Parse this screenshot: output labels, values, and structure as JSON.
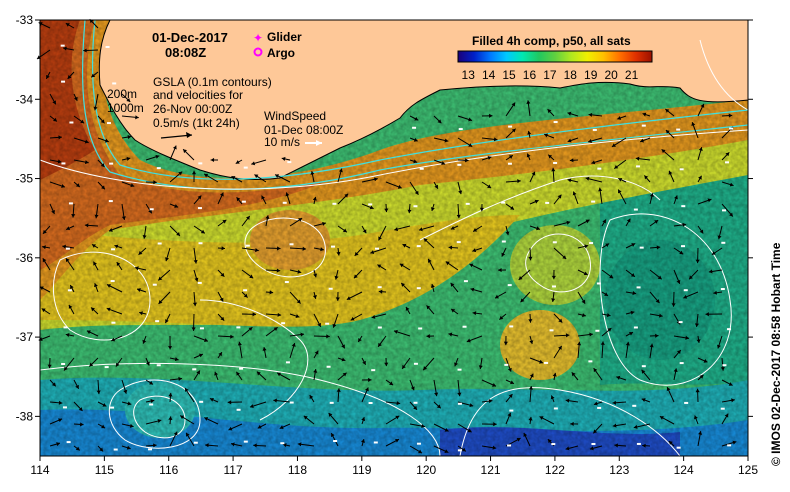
{
  "header": {
    "date": "01-Dec-2017",
    "time": "08:08Z"
  },
  "legend_markers": {
    "glider": "Glider",
    "argo": "Argo",
    "glider_color": "#ff00ff",
    "argo_color": "#ff00ff"
  },
  "depth_labels": [
    "200m",
    "1000m"
  ],
  "gsla_note": [
    "GSLA (0.1m contours)",
    "and velocities for",
    "26-Nov 00:00Z",
    "0.5m/s (1kt 24h)"
  ],
  "wind_note": [
    "WindSpeed",
    "01-Dec 08:00Z",
    "10 m/s"
  ],
  "colorbar": {
    "title": "Filled 4h comp, p50, all sats",
    "ticks": [
      "13",
      "14",
      "15",
      "16",
      "17",
      "18",
      "19",
      "20",
      "21"
    ],
    "range": [
      12.5,
      22.0
    ],
    "colors": [
      "#1a007a",
      "#0020c8",
      "#0078ff",
      "#00c8ff",
      "#00e8b0",
      "#20c860",
      "#60d040",
      "#b0e820",
      "#f0f000",
      "#ffc000",
      "#ff7000",
      "#e03000",
      "#9a1000"
    ]
  },
  "axes": {
    "x_ticks": [
      "114",
      "115",
      "116",
      "117",
      "118",
      "119",
      "120",
      "121",
      "122",
      "123",
      "124",
      "125"
    ],
    "y_ticks": [
      "-33",
      "-34",
      "-35",
      "-36",
      "-37",
      "-38"
    ],
    "lon_range": [
      114,
      125
    ],
    "lat_range": [
      -38.5,
      -33
    ]
  },
  "credit": "© IMOS 02-Dec-2017 08:58 Hobart Time",
  "colors": {
    "land": "#fec898",
    "coast": "#000000",
    "isobath": "#40e0e0",
    "contour": "#ffffff"
  }
}
